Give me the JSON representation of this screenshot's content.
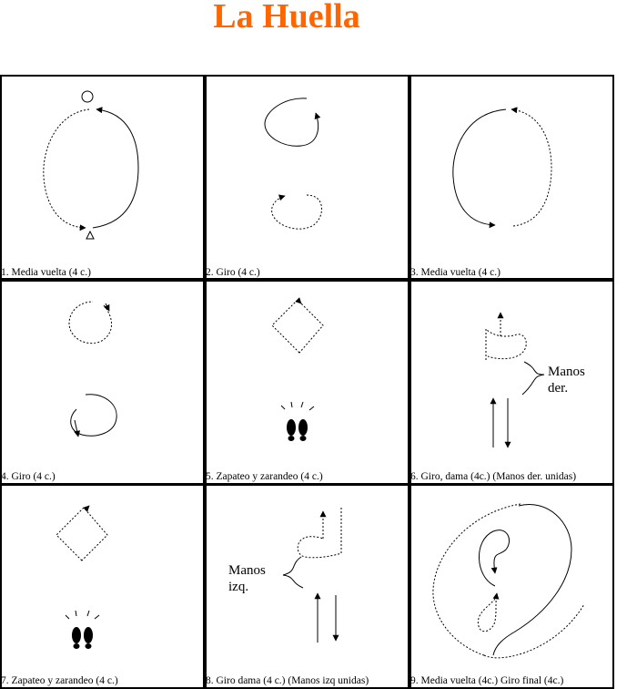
{
  "title": "La Huella",
  "colors": {
    "title": "#ff6600",
    "line": "#000000"
  },
  "panels": [
    {
      "caption": "1. Media vuelta (4 c.)"
    },
    {
      "caption": "2. Giro (4 c.)"
    },
    {
      "caption": "3. Media vuelta (4 c.)"
    },
    {
      "caption": "4. Giro (4 c.)"
    },
    {
      "caption": "5. Zapateo y zarandeo (4 c.)"
    },
    {
      "caption": "6. Giro, dama (4c.) (Manos der. unidas)"
    },
    {
      "caption": "7. Zapateo y zarandeo (4 c.)"
    },
    {
      "caption": "8. Giro dama (4 c.) (Manos izq unidas)"
    },
    {
      "caption": "9. Media vuelta (4c.) Giro final (4c.)"
    }
  ],
  "annotations": {
    "panel6": [
      "Manos",
      "der."
    ],
    "panel8": [
      "Manos",
      "izq."
    ]
  }
}
